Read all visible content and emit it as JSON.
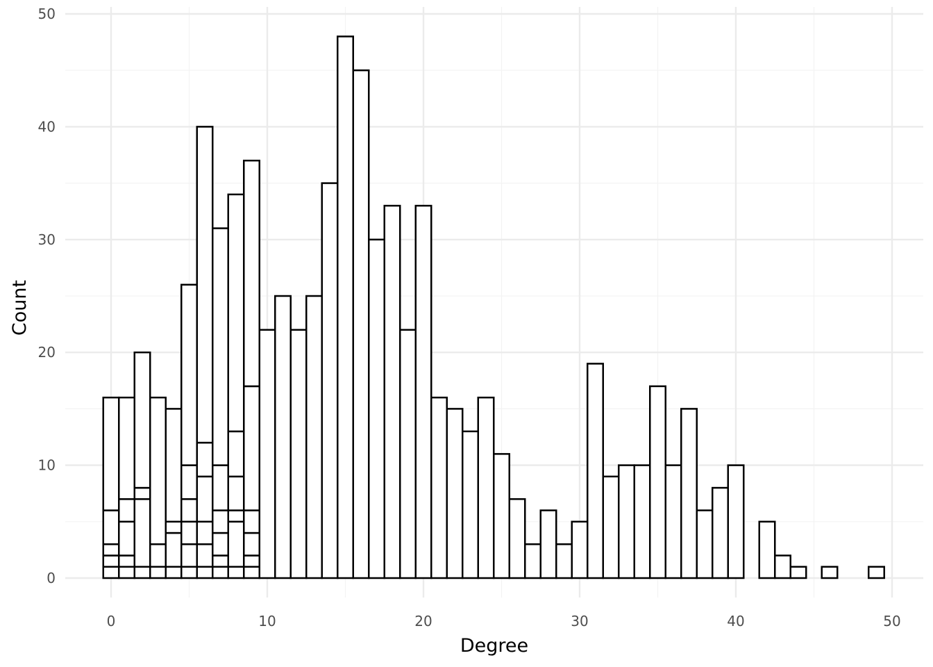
{
  "chart_data": {
    "type": "bar",
    "subtype": "stacked-histogram",
    "xlabel": "Degree",
    "ylabel": "Count",
    "xlim": [
      -3,
      52
    ],
    "ylim": [
      0,
      50
    ],
    "x_ticks": [
      0,
      10,
      20,
      30,
      40,
      50
    ],
    "y_ticks": [
      0,
      10,
      20,
      30,
      40,
      50
    ],
    "grid": true,
    "bin_width": 1,
    "fill_color": "#ffffff",
    "outline_color": "#000000",
    "x": [
      0,
      1,
      2,
      3,
      4,
      5,
      6,
      7,
      8,
      9,
      10,
      11,
      12,
      13,
      14,
      15,
      16,
      17,
      18,
      19,
      20,
      21,
      22,
      23,
      24,
      25,
      26,
      27,
      28,
      29,
      30,
      31,
      32,
      33,
      34,
      35,
      36,
      37,
      38,
      39,
      40,
      42,
      43,
      44,
      46,
      49
    ],
    "totals": [
      16,
      16,
      20,
      16,
      15,
      26,
      40,
      31,
      34,
      37,
      22,
      25,
      22,
      25,
      35,
      48,
      45,
      30,
      33,
      22,
      33,
      16,
      15,
      13,
      16,
      11,
      7,
      3,
      6,
      3,
      5,
      19,
      9,
      10,
      10,
      17,
      10,
      15,
      6,
      8,
      10,
      5,
      2,
      1,
      1,
      1
    ],
    "stack_boundaries": [
      [
        1,
        2,
        3,
        6
      ],
      [
        1,
        2,
        5,
        7
      ],
      [
        1,
        7,
        8
      ],
      [
        1,
        3
      ],
      [
        1,
        4,
        5
      ],
      [
        1,
        3,
        5,
        7,
        10
      ],
      [
        1,
        3,
        5,
        9,
        12
      ],
      [
        1,
        2,
        4,
        6,
        10
      ],
      [
        1,
        5,
        6,
        9,
        13
      ],
      [
        1,
        2,
        4,
        6,
        17
      ],
      [],
      [],
      [],
      [],
      [],
      [],
      [],
      [],
      [],
      [],
      [],
      [],
      [],
      [],
      [],
      [],
      [],
      [],
      [],
      [],
      [],
      [],
      [],
      [],
      [],
      [],
      [],
      [],
      [],
      [],
      [],
      [],
      [],
      [],
      [],
      []
    ]
  }
}
